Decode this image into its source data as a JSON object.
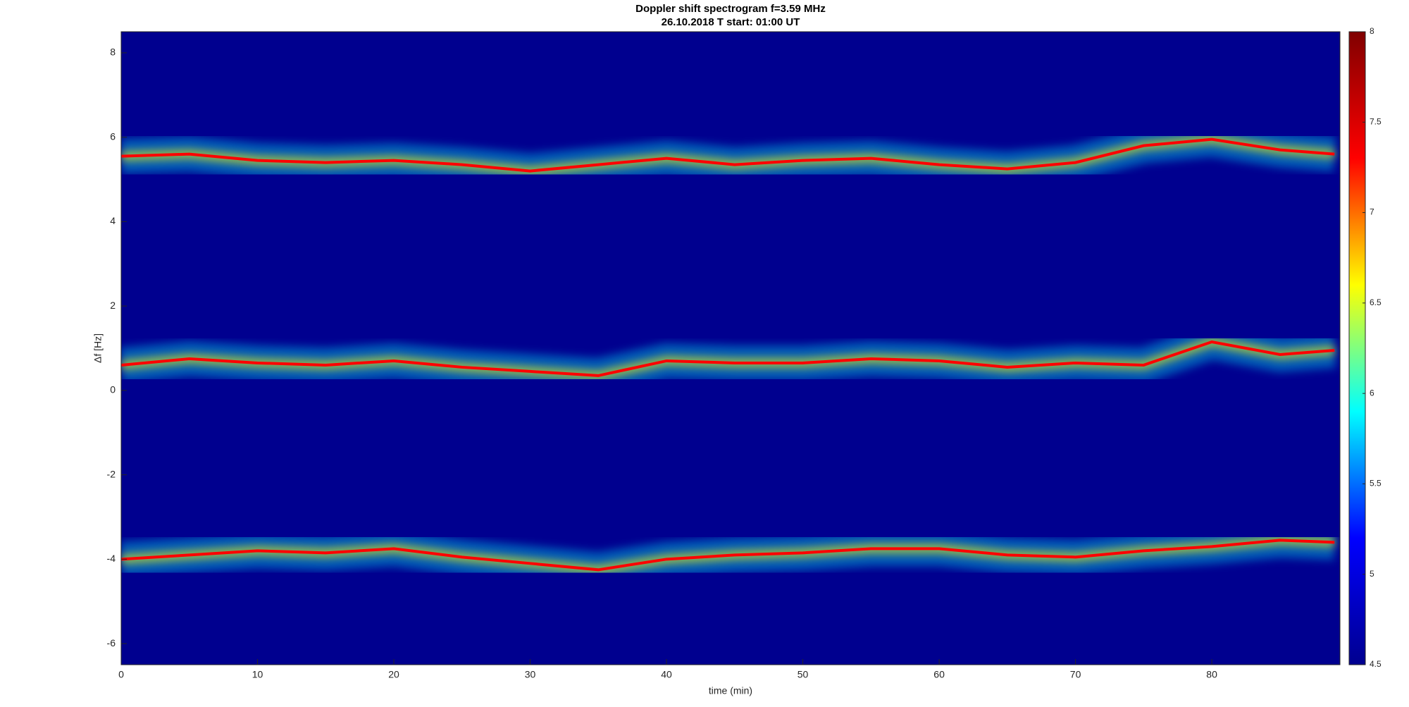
{
  "chart_data": {
    "type": "spectrogram",
    "title": "Doppler shift spectrogram f=3.59 MHz",
    "subtitle": "26.10.2018    T start: 01:00 UT",
    "x_label": "time (min)",
    "y_label": "Δf [Hz]",
    "x": [
      0,
      5,
      10,
      15,
      20,
      25,
      30,
      35,
      40,
      45,
      50,
      55,
      60,
      65,
      70,
      75,
      80,
      85,
      89
    ],
    "series": [
      {
        "color": "#ff0000",
        "values": [
          5.55,
          5.6,
          5.45,
          5.4,
          5.45,
          5.35,
          5.2,
          5.35,
          5.5,
          5.35,
          5.45,
          5.5,
          5.35,
          5.25,
          5.4,
          5.8,
          5.95,
          5.7,
          5.6
        ]
      },
      {
        "color": "#ff0000",
        "values": [
          0.6,
          0.75,
          0.65,
          0.6,
          0.7,
          0.55,
          0.45,
          0.35,
          0.7,
          0.65,
          0.65,
          0.75,
          0.7,
          0.55,
          0.65,
          0.6,
          1.15,
          0.85,
          0.95
        ]
      },
      {
        "color": "#ff0000",
        "values": [
          -4.0,
          -3.9,
          -3.8,
          -3.85,
          -3.75,
          -3.95,
          -4.1,
          -4.25,
          -4.0,
          -3.9,
          -3.85,
          -3.75,
          -3.75,
          -3.9,
          -3.95,
          -3.8,
          -3.7,
          -3.55,
          -3.6
        ]
      }
    ],
    "xlim": [
      0,
      89.4
    ],
    "xticks": [
      0,
      10,
      20,
      30,
      40,
      50,
      60,
      70,
      80
    ],
    "ylim": [
      -6.5,
      8.5
    ],
    "yticks": [
      -6,
      -4,
      -2,
      0,
      2,
      4,
      6,
      8
    ],
    "colormap": [
      "#00008f",
      "#0000ff",
      "#00ffff",
      "#ffff00",
      "#ff0000",
      "#800000"
    ],
    "clim": [
      4.5,
      8
    ],
    "cticks": [
      4.5,
      5,
      5.5,
      6,
      6.5,
      7,
      7.5,
      8
    ]
  }
}
